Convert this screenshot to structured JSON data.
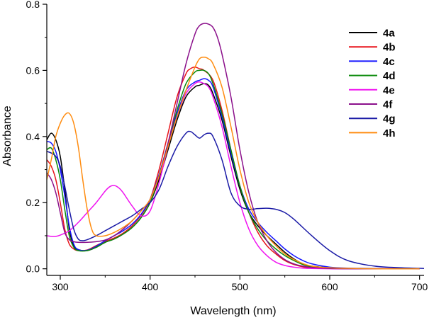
{
  "chart_data": {
    "type": "line",
    "title": "",
    "xlabel": "Wavelength (nm)",
    "ylabel": "Absorbance",
    "xlim": [
      285,
      705
    ],
    "ylim": [
      -0.02,
      0.8
    ],
    "xticks": [
      300,
      400,
      500,
      600,
      700
    ],
    "xtick_labels": [
      "300",
      "400",
      "500",
      "600",
      "700"
    ],
    "yticks": [
      0.0,
      0.2,
      0.4,
      0.6,
      0.8
    ],
    "ytick_labels": [
      "0.0",
      "0.2",
      "0.4",
      "0.6",
      "0.8"
    ],
    "grid": false,
    "legend_position": "top-right",
    "series": [
      {
        "name": "4a",
        "color": "#000000",
        "x": [
          285,
          290,
          295,
          300,
          305,
          310,
          315,
          320,
          330,
          340,
          350,
          360,
          370,
          380,
          390,
          400,
          410,
          420,
          430,
          440,
          450,
          455,
          460,
          465,
          470,
          480,
          490,
          500,
          510,
          520,
          530,
          540,
          550,
          560,
          570,
          580,
          600,
          620,
          650,
          680,
          700
        ],
        "y": [
          0.39,
          0.41,
          0.39,
          0.34,
          0.24,
          0.12,
          0.07,
          0.058,
          0.055,
          0.065,
          0.08,
          0.09,
          0.105,
          0.125,
          0.155,
          0.2,
          0.27,
          0.36,
          0.45,
          0.52,
          0.55,
          0.555,
          0.56,
          0.555,
          0.53,
          0.45,
          0.34,
          0.24,
          0.17,
          0.13,
          0.1,
          0.075,
          0.05,
          0.03,
          0.015,
          0.008,
          0.003,
          0.001,
          0.0,
          0.0,
          0.0
        ]
      },
      {
        "name": "4b",
        "color": "#e8141b",
        "x": [
          285,
          290,
          295,
          300,
          305,
          310,
          315,
          320,
          330,
          340,
          350,
          360,
          370,
          380,
          390,
          400,
          410,
          420,
          430,
          440,
          445,
          450,
          455,
          460,
          470,
          480,
          490,
          500,
          510,
          520,
          530,
          540,
          550,
          560,
          570,
          580,
          600,
          620,
          650,
          680,
          700
        ],
        "y": [
          0.33,
          0.31,
          0.27,
          0.2,
          0.12,
          0.075,
          0.06,
          0.055,
          0.057,
          0.07,
          0.083,
          0.093,
          0.108,
          0.13,
          0.162,
          0.21,
          0.3,
          0.41,
          0.52,
          0.59,
          0.605,
          0.61,
          0.605,
          0.6,
          0.57,
          0.48,
          0.36,
          0.25,
          0.17,
          0.11,
          0.07,
          0.045,
          0.025,
          0.013,
          0.006,
          0.003,
          0.001,
          0.0,
          0.0,
          0.0,
          0.0
        ]
      },
      {
        "name": "4c",
        "color": "#1515ff",
        "x": [
          285,
          290,
          295,
          300,
          305,
          310,
          315,
          320,
          330,
          340,
          350,
          360,
          370,
          380,
          390,
          400,
          410,
          420,
          430,
          440,
          450,
          455,
          460,
          465,
          470,
          480,
          490,
          500,
          510,
          520,
          530,
          540,
          550,
          560,
          570,
          580,
          600,
          620,
          650,
          680,
          700
        ],
        "y": [
          0.385,
          0.38,
          0.355,
          0.3,
          0.22,
          0.13,
          0.075,
          0.058,
          0.056,
          0.068,
          0.085,
          0.1,
          0.115,
          0.135,
          0.165,
          0.21,
          0.285,
          0.38,
          0.47,
          0.54,
          0.565,
          0.57,
          0.575,
          0.57,
          0.55,
          0.46,
          0.35,
          0.25,
          0.18,
          0.14,
          0.11,
          0.085,
          0.06,
          0.04,
          0.025,
          0.015,
          0.005,
          0.002,
          0.001,
          0.0,
          0.0
        ]
      },
      {
        "name": "4d",
        "color": "#0a8a0a",
        "x": [
          285,
          290,
          295,
          300,
          305,
          310,
          315,
          320,
          330,
          340,
          350,
          360,
          370,
          380,
          390,
          400,
          410,
          420,
          430,
          440,
          450,
          455,
          460,
          465,
          470,
          480,
          490,
          500,
          510,
          520,
          530,
          540,
          550,
          560,
          570,
          580,
          600,
          620,
          650,
          680,
          700
        ],
        "y": [
          0.36,
          0.365,
          0.33,
          0.27,
          0.18,
          0.1,
          0.065,
          0.055,
          0.055,
          0.065,
          0.08,
          0.09,
          0.105,
          0.125,
          0.155,
          0.2,
          0.28,
          0.38,
          0.48,
          0.56,
          0.595,
          0.6,
          0.6,
          0.59,
          0.56,
          0.47,
          0.36,
          0.25,
          0.17,
          0.12,
          0.085,
          0.06,
          0.04,
          0.025,
          0.013,
          0.006,
          0.002,
          0.001,
          0.0,
          0.0,
          0.0
        ]
      },
      {
        "name": "4e",
        "color": "#f013f0",
        "x": [
          285,
          290,
          295,
          300,
          310,
          320,
          330,
          340,
          350,
          355,
          360,
          365,
          370,
          380,
          390,
          400,
          410,
          420,
          430,
          440,
          450,
          455,
          460,
          465,
          470,
          480,
          490,
          500,
          510,
          520,
          530,
          540,
          550,
          560,
          570,
          580,
          600,
          620,
          650,
          680,
          700
        ],
        "y": [
          0.1,
          0.098,
          0.098,
          0.102,
          0.115,
          0.14,
          0.17,
          0.2,
          0.235,
          0.248,
          0.252,
          0.245,
          0.23,
          0.19,
          0.16,
          0.175,
          0.26,
          0.37,
          0.46,
          0.53,
          0.56,
          0.565,
          0.56,
          0.55,
          0.52,
          0.43,
          0.31,
          0.2,
          0.12,
          0.07,
          0.04,
          0.02,
          0.01,
          0.005,
          0.002,
          0.001,
          0.0,
          0.0,
          0.0,
          0.0,
          0.0
        ]
      },
      {
        "name": "4f",
        "color": "#8b108b",
        "x": [
          285,
          290,
          295,
          300,
          305,
          310,
          315,
          320,
          330,
          340,
          350,
          360,
          370,
          380,
          390,
          400,
          410,
          420,
          430,
          440,
          450,
          455,
          460,
          465,
          470,
          475,
          480,
          490,
          500,
          510,
          520,
          530,
          540,
          550,
          560,
          570,
          580,
          600,
          620,
          650,
          700
        ],
        "y": [
          0.29,
          0.27,
          0.23,
          0.17,
          0.11,
          0.088,
          0.082,
          0.08,
          0.08,
          0.082,
          0.087,
          0.1,
          0.12,
          0.145,
          0.175,
          0.21,
          0.28,
          0.38,
          0.5,
          0.62,
          0.71,
          0.735,
          0.742,
          0.74,
          0.73,
          0.7,
          0.65,
          0.52,
          0.36,
          0.23,
          0.14,
          0.085,
          0.05,
          0.028,
          0.015,
          0.008,
          0.004,
          0.001,
          0.0,
          0.0,
          0.0
        ]
      },
      {
        "name": "4g",
        "color": "#1a1aa6",
        "x": [
          285,
          290,
          295,
          300,
          305,
          310,
          315,
          320,
          325,
          330,
          340,
          350,
          360,
          370,
          380,
          390,
          400,
          410,
          420,
          430,
          440,
          445,
          450,
          455,
          460,
          465,
          470,
          480,
          490,
          500,
          510,
          520,
          530,
          540,
          550,
          560,
          580,
          600,
          620,
          650,
          680,
          705
        ],
        "y": [
          0.355,
          0.35,
          0.34,
          0.31,
          0.25,
          0.18,
          0.12,
          0.09,
          0.085,
          0.088,
          0.1,
          0.115,
          0.13,
          0.145,
          0.16,
          0.18,
          0.2,
          0.24,
          0.31,
          0.37,
          0.41,
          0.415,
          0.405,
          0.395,
          0.405,
          0.41,
          0.4,
          0.33,
          0.23,
          0.19,
          0.18,
          0.182,
          0.183,
          0.18,
          0.17,
          0.15,
          0.1,
          0.055,
          0.025,
          0.008,
          0.003,
          0.001
        ]
      },
      {
        "name": "4h",
        "color": "#ff8c10",
        "x": [
          285,
          290,
          295,
          300,
          305,
          310,
          315,
          320,
          325,
          330,
          335,
          340,
          350,
          360,
          370,
          380,
          390,
          400,
          410,
          420,
          430,
          440,
          450,
          455,
          460,
          465,
          470,
          480,
          490,
          500,
          510,
          520,
          530,
          540,
          550,
          560,
          570,
          580,
          600,
          650,
          700
        ],
        "y": [
          0.27,
          0.33,
          0.4,
          0.44,
          0.465,
          0.47,
          0.44,
          0.37,
          0.27,
          0.18,
          0.12,
          0.1,
          0.1,
          0.11,
          0.125,
          0.145,
          0.175,
          0.21,
          0.28,
          0.37,
          0.46,
          0.54,
          0.61,
          0.635,
          0.64,
          0.635,
          0.62,
          0.55,
          0.43,
          0.3,
          0.2,
          0.14,
          0.1,
          0.07,
          0.045,
          0.028,
          0.016,
          0.008,
          0.003,
          0.0,
          0.0
        ]
      }
    ]
  }
}
